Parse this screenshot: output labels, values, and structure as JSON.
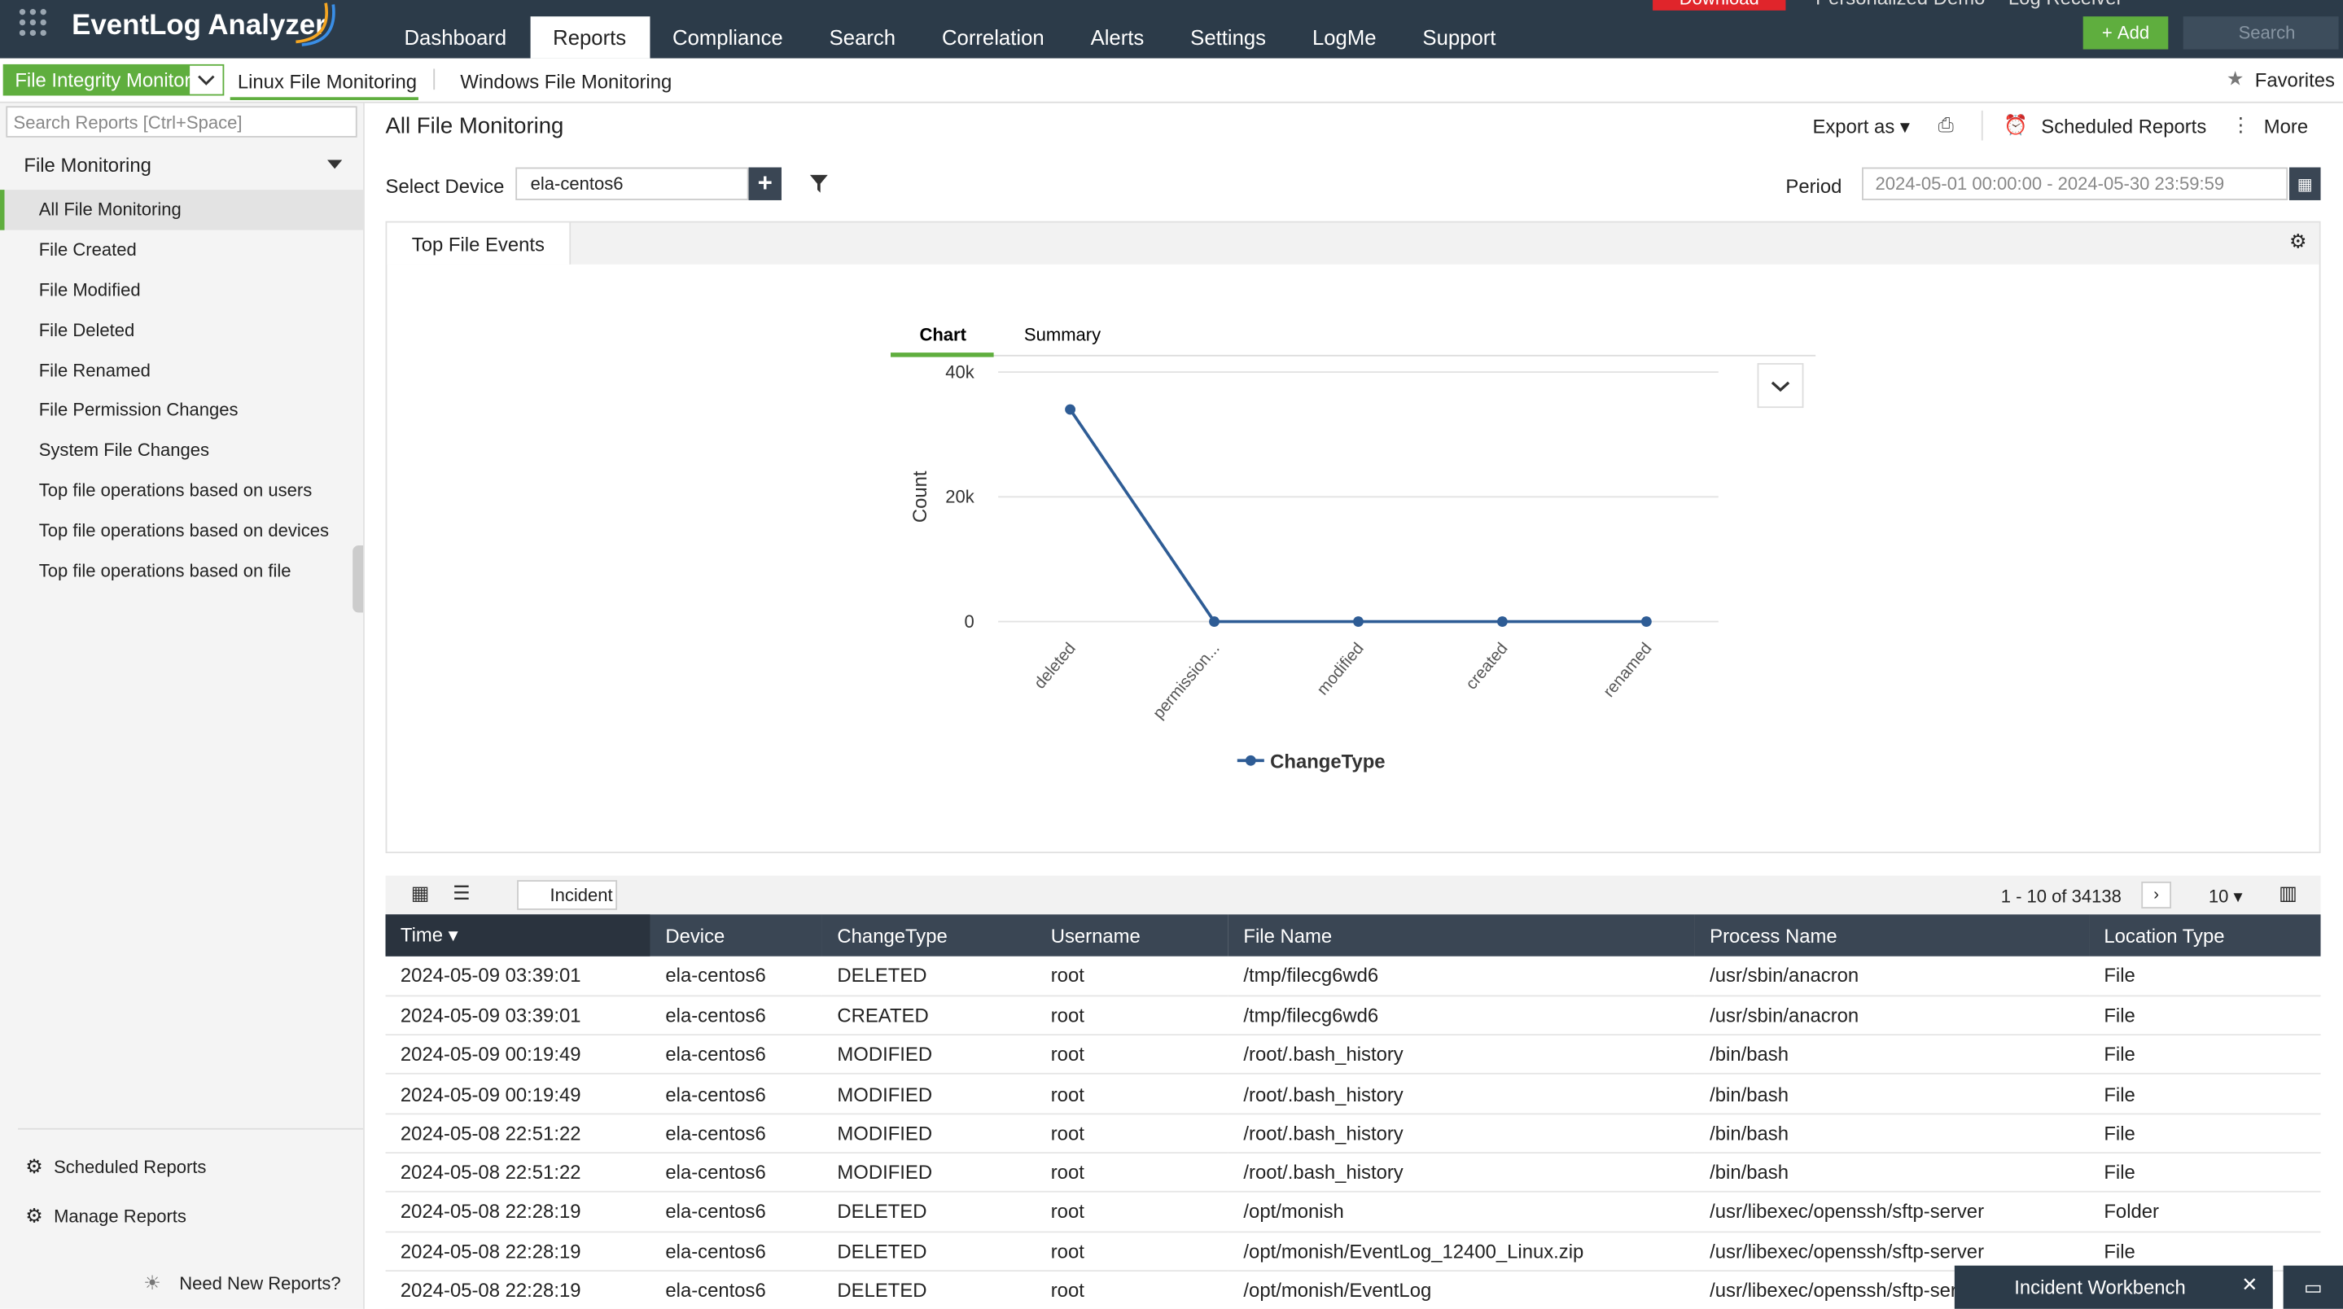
{
  "header": {
    "logo": "EventLog Analyzer",
    "nav": [
      "Dashboard",
      "Reports",
      "Compliance",
      "Search",
      "Correlation",
      "Alerts",
      "Settings",
      "LogMe",
      "Support"
    ],
    "download": "Download",
    "demo": "Personalized Demo",
    "log_receiver": "Log Receiver",
    "add": "Add",
    "search": "Search"
  },
  "subnav": {
    "module": "File Integrity Monitor",
    "tabs": [
      "Linux File Monitoring",
      "Windows File Monitoring"
    ],
    "favorites": "Favorites"
  },
  "sidebar": {
    "search": "Search Reports [Ctrl+Space]",
    "group": "File Monitoring",
    "items": [
      "All File Monitoring",
      "File Created",
      "File Modified",
      "File Deleted",
      "File Renamed",
      "File Permission Changes",
      "System File Changes",
      "Top file operations based on users",
      "Top file operations based on devices",
      "Top file operations based on file"
    ],
    "scheduled": "Scheduled Reports",
    "manage": "Manage Reports",
    "need_new": "Need New Reports?"
  },
  "main": {
    "title": "All File Monitoring",
    "export": "Export as",
    "scheduled": "Scheduled Reports",
    "more": "More",
    "device_label": "Select Device",
    "device": "ela-centos6",
    "period_label": "Period",
    "period": "2024-05-01 00:00:00 - 2024-05-30 23:59:59",
    "panel_tab": "Top File Events",
    "chart_tabs": [
      "Chart",
      "Summary"
    ]
  },
  "chart_data": {
    "type": "line",
    "y_label": "Count",
    "categories": [
      "deleted",
      "permission...",
      "modified",
      "created",
      "renamed"
    ],
    "series": [
      {
        "name": "ChangeType",
        "color": "#2e5c95",
        "values": [
          34000,
          0,
          0,
          0,
          0
        ]
      }
    ],
    "ylim": [
      0,
      40000
    ],
    "yticks": [
      0,
      {
        "value": 20000,
        "label": "20k"
      },
      {
        "value": 40000,
        "label": "40k"
      }
    ],
    "grid": true
  },
  "table": {
    "incident": "Incident",
    "pagination": "1 - 10 of 34138",
    "page_size": "10",
    "columns": [
      "Time",
      "Device",
      "ChangeType",
      "Username",
      "File Name",
      "Process Name",
      "Location Type"
    ],
    "rows": [
      [
        "2024-05-09 03:39:01",
        "ela-centos6",
        "DELETED",
        "root",
        "/tmp/filecg6wd6",
        "/usr/sbin/anacron",
        "File"
      ],
      [
        "2024-05-09 03:39:01",
        "ela-centos6",
        "CREATED",
        "root",
        "/tmp/filecg6wd6",
        "/usr/sbin/anacron",
        "File"
      ],
      [
        "2024-05-09 00:19:49",
        "ela-centos6",
        "MODIFIED",
        "root",
        "/root/.bash_history",
        "/bin/bash",
        "File"
      ],
      [
        "2024-05-09 00:19:49",
        "ela-centos6",
        "MODIFIED",
        "root",
        "/root/.bash_history",
        "/bin/bash",
        "File"
      ],
      [
        "2024-05-08 22:51:22",
        "ela-centos6",
        "MODIFIED",
        "root",
        "/root/.bash_history",
        "/bin/bash",
        "File"
      ],
      [
        "2024-05-08 22:51:22",
        "ela-centos6",
        "MODIFIED",
        "root",
        "/root/.bash_history",
        "/bin/bash",
        "File"
      ],
      [
        "2024-05-08 22:28:19",
        "ela-centos6",
        "DELETED",
        "root",
        "/opt/monish",
        "/usr/libexec/openssh/sftp-server",
        "Folder"
      ],
      [
        "2024-05-08 22:28:19",
        "ela-centos6",
        "DELETED",
        "root",
        "/opt/monish/EventLog_12400_Linux.zip",
        "/usr/libexec/openssh/sftp-server",
        "File"
      ],
      [
        "2024-05-08 22:28:19",
        "ela-centos6",
        "DELETED",
        "root",
        "/opt/monish/EventLog",
        "/usr/libexec/openssh/sftp-server",
        "File"
      ]
    ]
  },
  "footer": {
    "workbench": "Incident Workbench"
  }
}
